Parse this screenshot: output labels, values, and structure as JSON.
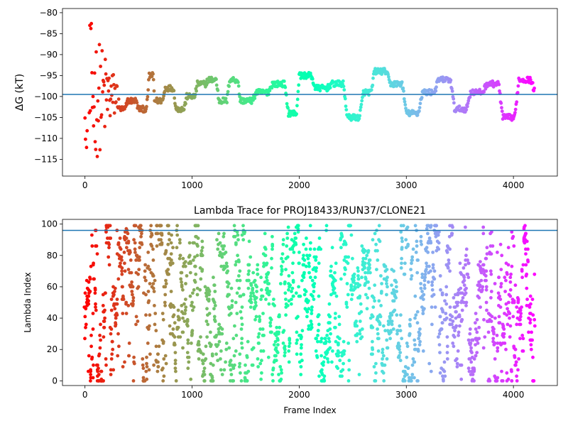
{
  "chart_data": [
    {
      "type": "scatter",
      "title": "",
      "xlabel": "",
      "ylabel": "ΔG (kT)",
      "xlim": [
        -210,
        4410
      ],
      "ylim": [
        -119,
        -79
      ],
      "xticks": [
        0,
        1000,
        2000,
        3000,
        4000
      ],
      "xtick_labels": [
        "0",
        "1000",
        "2000",
        "3000",
        "4000"
      ],
      "yticks": [
        -80,
        -85,
        -90,
        -95,
        -100,
        -105,
        -110,
        -115
      ],
      "ytick_labels": [
        "−80",
        "−85",
        "−90",
        "−95",
        "−100",
        "−105",
        "−110",
        "−115"
      ],
      "hline": -99.5,
      "hline_color": "#1f77b4",
      "colormap": "rainbow (frame index → red..violet)",
      "n_frames": 4200,
      "trace_profile": [
        {
          "x": 0,
          "y": -80
        },
        {
          "x": 100,
          "y": -97
        },
        {
          "x": 200,
          "y": -101
        },
        {
          "x": 300,
          "y": -103
        },
        {
          "x": 400,
          "y": -101
        },
        {
          "x": 500,
          "y": -103
        },
        {
          "x": 600,
          "y": -95
        },
        {
          "x": 650,
          "y": -101
        },
        {
          "x": 750,
          "y": -98
        },
        {
          "x": 850,
          "y": -103
        },
        {
          "x": 950,
          "y": -100
        },
        {
          "x": 1050,
          "y": -97
        },
        {
          "x": 1150,
          "y": -96
        },
        {
          "x": 1250,
          "y": -101
        },
        {
          "x": 1350,
          "y": -96
        },
        {
          "x": 1450,
          "y": -101
        },
        {
          "x": 1600,
          "y": -99
        },
        {
          "x": 1750,
          "y": -97
        },
        {
          "x": 1900,
          "y": -104
        },
        {
          "x": 2000,
          "y": -95
        },
        {
          "x": 2150,
          "y": -98
        },
        {
          "x": 2300,
          "y": -97
        },
        {
          "x": 2450,
          "y": -105
        },
        {
          "x": 2600,
          "y": -99
        },
        {
          "x": 2700,
          "y": -94
        },
        {
          "x": 2850,
          "y": -97
        },
        {
          "x": 3000,
          "y": -104
        },
        {
          "x": 3150,
          "y": -99
        },
        {
          "x": 3300,
          "y": -96
        },
        {
          "x": 3450,
          "y": -103
        },
        {
          "x": 3600,
          "y": -99
        },
        {
          "x": 3750,
          "y": -97
        },
        {
          "x": 3900,
          "y": -105
        },
        {
          "x": 4050,
          "y": -96
        },
        {
          "x": 4200,
          "y": -99
        }
      ]
    },
    {
      "type": "scatter",
      "title": "Lambda Trace for PROJ18433/RUN37/CLONE21",
      "xlabel": "Frame Index",
      "ylabel": "Lambda Index",
      "xlim": [
        -210,
        4410
      ],
      "ylim": [
        -3,
        103
      ],
      "xticks": [
        0,
        1000,
        2000,
        3000,
        4000
      ],
      "xtick_labels": [
        "0",
        "1000",
        "2000",
        "3000",
        "4000"
      ],
      "yticks": [
        0,
        20,
        40,
        60,
        80,
        100
      ],
      "ytick_labels": [
        "0",
        "20",
        "40",
        "60",
        "80",
        "100"
      ],
      "hline": 96,
      "hline_color": "#1f77b4",
      "colormap": "rainbow (frame index → red..violet)",
      "n_frames": 4200,
      "value_range": [
        0,
        99
      ]
    }
  ]
}
